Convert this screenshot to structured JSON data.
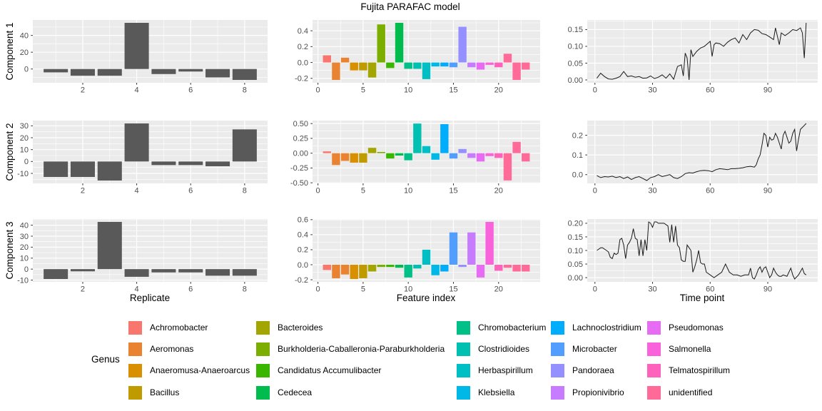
{
  "title": "Fujita PARAFAC model",
  "theme": {
    "panel_bg": "#EBEBEB",
    "grid": "#FFFFFF",
    "bar_fill": "#595959",
    "tick_text": "#4D4D4D",
    "tick_mark": "#333333",
    "line": "#1A1A1A"
  },
  "rows": [
    {
      "label": "Component 1"
    },
    {
      "label": "Component 2"
    },
    {
      "label": "Component 3"
    }
  ],
  "axis_titles": {
    "left": "Replicate",
    "middle": "Feature index",
    "right": "Time point"
  },
  "palette": {
    "feature_colors": [
      "#F8766D",
      "#EA8331",
      "#EA8331",
      "#D89000",
      "#C09B00",
      "#A3A500",
      "#7CAE00",
      "#39B600",
      "#00BB4E",
      "#00C087",
      "#00C0B2",
      "#00BFC4",
      "#00B8E7",
      "#00ACFC",
      "#529EFF",
      "#9590FF",
      "#C77CFF",
      "#E76BF3",
      "#FA62DB",
      "#FF62BC",
      "#FF6A98",
      "#FF6A98",
      "#FF6A98"
    ]
  },
  "legend": {
    "title": "Genus",
    "columns": [
      [
        {
          "label": "Achromobacter",
          "color": "#F8766D"
        },
        {
          "label": "Aeromonas",
          "color": "#EA8331"
        },
        {
          "label": "Anaeromusa-Anaeroarcus",
          "color": "#D89000"
        },
        {
          "label": "Bacillus",
          "color": "#C09B00"
        }
      ],
      [
        {
          "label": "Bacteroides",
          "color": "#A3A500"
        },
        {
          "label": "Burkholderia-Caballeronia-Paraburkholderia",
          "color": "#7CAE00"
        },
        {
          "label": "Candidatus Accumulibacter",
          "color": "#39B600"
        },
        {
          "label": "Cedecea",
          "color": "#00BB4E"
        }
      ],
      [
        {
          "label": "Chromobacterium",
          "color": "#00C087"
        },
        {
          "label": "Clostridioides",
          "color": "#00C0B2"
        },
        {
          "label": "Herbaspirillum",
          "color": "#00BFC4"
        },
        {
          "label": "Klebsiella",
          "color": "#00B8E7"
        }
      ],
      [
        {
          "label": "Lachnoclostridium",
          "color": "#00ACFC"
        },
        {
          "label": "Microbacter",
          "color": "#529EFF"
        },
        {
          "label": "Pandoraea",
          "color": "#9590FF"
        },
        {
          "label": "Propionivibrio",
          "color": "#C77CFF"
        }
      ],
      [
        {
          "label": "Pseudomonas",
          "color": "#E76BF3"
        },
        {
          "label": "Salmonella",
          "color": "#FA62DB"
        },
        {
          "label": "Telmatospirillum",
          "color": "#FF62BC"
        },
        {
          "label": "unidentified",
          "color": "#FF6A98"
        }
      ]
    ]
  },
  "chart_data": [
    {
      "type": "bar",
      "name": "component1-replicate-loadings",
      "fill": "single",
      "x": [
        1,
        2,
        3,
        4,
        5,
        6,
        7,
        8
      ],
      "values": [
        -4,
        -8,
        -8,
        55,
        -6,
        -3,
        -10,
        -13
      ],
      "xlim": [
        0.15,
        8.85
      ],
      "ylim": [
        -16.4,
        58.4
      ],
      "xticks": [
        2,
        4,
        6,
        8
      ],
      "xtick_labels": [
        "2",
        "4",
        "6",
        "8"
      ],
      "yticks": [
        0,
        20,
        40
      ],
      "ytick_labels": [
        "0",
        "20",
        "40"
      ]
    },
    {
      "type": "bar",
      "name": "component1-feature-loadings",
      "fill": "genus",
      "x": [
        1,
        2,
        3,
        4,
        5,
        6,
        7,
        8,
        9,
        10,
        11,
        12,
        13,
        14,
        15,
        16,
        17,
        18,
        19,
        20,
        21,
        22,
        23
      ],
      "values": [
        0.09,
        -0.22,
        0.06,
        -0.1,
        -0.1,
        -0.19,
        0.48,
        -0.07,
        0.5,
        -0.08,
        -0.08,
        -0.21,
        -0.05,
        -0.05,
        -0.06,
        0.45,
        -0.06,
        -0.09,
        -0.03,
        -0.06,
        0.11,
        -0.22,
        -0.09
      ],
      "xlim": [
        -0.6,
        24.6
      ],
      "ylim": [
        -0.256,
        0.536
      ],
      "xticks": [
        0,
        5,
        10,
        15,
        20
      ],
      "xtick_labels": [
        "0",
        "5",
        "10",
        "15",
        "20"
      ],
      "yticks": [
        -0.2,
        0.0,
        0.2,
        0.4
      ],
      "ytick_labels": [
        "-0.2",
        "0.0",
        "0.2",
        "0.4"
      ]
    },
    {
      "type": "line",
      "name": "component1-time-loadings",
      "x": [
        1,
        3,
        5,
        7,
        9,
        11,
        13,
        15,
        17,
        19,
        21,
        23,
        25,
        27,
        29,
        31,
        33,
        35,
        37,
        39,
        41,
        43,
        45,
        46,
        47,
        48,
        49,
        50,
        51,
        53,
        55,
        57,
        59,
        60,
        61,
        62,
        63,
        65,
        67,
        69,
        71,
        73,
        75,
        77,
        79,
        81,
        83,
        85,
        87,
        89,
        91,
        93,
        94,
        95,
        96,
        97,
        99,
        101,
        103,
        105,
        107,
        108,
        109,
        110
      ],
      "y": [
        0.005,
        0.02,
        0.01,
        0.003,
        0.002,
        0.005,
        0.01,
        0.025,
        0.01,
        0.012,
        0.008,
        0.01,
        0.005,
        0.006,
        0.012,
        0.004,
        0.008,
        0.015,
        0.005,
        0.018,
        0.002,
        0.04,
        0.045,
        0.012,
        0.08,
        0.065,
        0.0,
        0.09,
        0.07,
        0.085,
        0.095,
        0.1,
        0.11,
        0.115,
        0.07,
        0.105,
        0.11,
        0.108,
        0.1,
        0.112,
        0.12,
        0.125,
        0.11,
        0.135,
        0.12,
        0.14,
        0.15,
        0.148,
        0.138,
        0.135,
        0.128,
        0.12,
        0.155,
        0.13,
        0.105,
        0.14,
        0.132,
        0.14,
        0.15,
        0.147,
        0.155,
        0.14,
        0.065,
        0.17
      ],
      "xlim": [
        -4,
        116
      ],
      "ylim": [
        -0.0085,
        0.1785
      ],
      "xticks": [
        0,
        30,
        60,
        90
      ],
      "xtick_labels": [
        "0",
        "30",
        "60",
        "90"
      ],
      "yticks": [
        0.0,
        0.05,
        0.1,
        0.15
      ],
      "ytick_labels": [
        "0.00",
        "0.05",
        "0.10",
        "0.15"
      ]
    },
    {
      "type": "bar",
      "name": "component2-replicate-loadings",
      "fill": "single",
      "x": [
        1,
        2,
        3,
        4,
        5,
        6,
        7,
        8
      ],
      "values": [
        -13,
        -13,
        -16,
        32,
        -3,
        -3,
        -4,
        27
      ],
      "xlim": [
        0.15,
        8.85
      ],
      "ylim": [
        -18.4,
        34.4
      ],
      "xticks": [
        2,
        4,
        6,
        8
      ],
      "xtick_labels": [
        "2",
        "4",
        "6",
        "8"
      ],
      "yticks": [
        -10,
        0,
        10,
        20,
        30
      ],
      "ytick_labels": [
        "-10",
        "0",
        "10",
        "20",
        "30"
      ]
    },
    {
      "type": "bar",
      "name": "component2-feature-loadings",
      "fill": "genus",
      "x": [
        1,
        2,
        3,
        4,
        5,
        6,
        7,
        8,
        9,
        10,
        11,
        12,
        13,
        14,
        15,
        16,
        17,
        18,
        19,
        20,
        21,
        22,
        23
      ],
      "values": [
        0.03,
        -0.2,
        -0.13,
        -0.16,
        -0.16,
        0.09,
        0.02,
        -0.09,
        -0.04,
        -0.12,
        0.5,
        0.12,
        -0.11,
        0.49,
        -0.09,
        0.07,
        -0.08,
        -0.14,
        -0.05,
        -0.08,
        -0.46,
        0.19,
        -0.14
      ],
      "xlim": [
        -0.6,
        24.6
      ],
      "ylim": [
        -0.51,
        0.55
      ],
      "xticks": [
        0,
        5,
        10,
        15,
        20
      ],
      "xtick_labels": [
        "0",
        "5",
        "10",
        "15",
        "20"
      ],
      "yticks": [
        -0.5,
        -0.25,
        0.0,
        0.25,
        0.5
      ],
      "ytick_labels": [
        "-0.50",
        "-0.25",
        "0.00",
        "0.25",
        "0.50"
      ]
    },
    {
      "type": "line",
      "name": "component2-time-loadings",
      "x": [
        1,
        3,
        5,
        7,
        9,
        11,
        13,
        15,
        17,
        19,
        21,
        23,
        25,
        27,
        29,
        31,
        33,
        35,
        37,
        39,
        41,
        43,
        45,
        47,
        49,
        51,
        53,
        55,
        57,
        59,
        61,
        63,
        65,
        67,
        69,
        71,
        73,
        75,
        77,
        79,
        81,
        83,
        84,
        85,
        86,
        87,
        88,
        89,
        90,
        91,
        92,
        93,
        94,
        95,
        96,
        97,
        98,
        99,
        100,
        101,
        102,
        103,
        104,
        105,
        106,
        107,
        108,
        109,
        110
      ],
      "y": [
        -0.005,
        -0.015,
        -0.01,
        -0.012,
        -0.008,
        -0.015,
        -0.01,
        -0.02,
        -0.012,
        -0.025,
        -0.015,
        -0.01,
        -0.02,
        -0.03,
        -0.015,
        -0.01,
        0.0,
        -0.01,
        -0.005,
        0.0,
        -0.015,
        -0.02,
        -0.01,
        0.005,
        0.01,
        0.008,
        0.015,
        0.02,
        0.022,
        0.02,
        0.015,
        0.025,
        0.03,
        0.028,
        0.025,
        0.03,
        0.03,
        0.032,
        0.035,
        0.04,
        0.042,
        0.038,
        0.05,
        0.08,
        0.1,
        0.15,
        0.21,
        0.2,
        0.14,
        0.19,
        0.175,
        0.18,
        0.21,
        0.19,
        0.16,
        0.13,
        0.2,
        0.22,
        0.19,
        0.16,
        0.17,
        0.21,
        0.23,
        0.12,
        0.18,
        0.23,
        0.24,
        0.25,
        0.26
      ],
      "xlim": [
        -4,
        116
      ],
      "ylim": [
        -0.0445,
        0.2745
      ],
      "xticks": [
        0,
        30,
        60,
        90
      ],
      "xtick_labels": [
        "0",
        "30",
        "60",
        "90"
      ],
      "yticks": [
        0.0,
        0.1,
        0.2
      ],
      "ytick_labels": [
        "0.0",
        "0.1",
        "0.2"
      ]
    },
    {
      "type": "bar",
      "name": "component3-replicate-loadings",
      "fill": "single",
      "x": [
        1,
        2,
        3,
        4,
        5,
        6,
        7,
        8
      ],
      "values": [
        -9,
        -2,
        43,
        -7,
        -3,
        -3,
        -6,
        -6
      ],
      "xlim": [
        0.15,
        8.85
      ],
      "ylim": [
        -11.6,
        45.6
      ],
      "xticks": [
        2,
        4,
        6,
        8
      ],
      "xtick_labels": [
        "2",
        "4",
        "6",
        "8"
      ],
      "yticks": [
        -10,
        0,
        10,
        20,
        30,
        40
      ],
      "ytick_labels": [
        "-10",
        "0",
        "10",
        "20",
        "30",
        "40"
      ]
    },
    {
      "type": "bar",
      "name": "component3-feature-loadings",
      "fill": "genus",
      "x": [
        1,
        2,
        3,
        4,
        5,
        6,
        7,
        8,
        9,
        10,
        11,
        12,
        13,
        14,
        15,
        16,
        17,
        18,
        19,
        20,
        21,
        22,
        23
      ],
      "values": [
        -0.07,
        -0.18,
        -0.13,
        -0.19,
        -0.18,
        -0.09,
        -0.03,
        -0.03,
        -0.04,
        -0.17,
        -0.05,
        0.2,
        -0.14,
        -0.09,
        0.43,
        -0.03,
        0.43,
        -0.17,
        0.57,
        -0.08,
        -0.04,
        -0.09,
        -0.09
      ],
      "xlim": [
        -0.6,
        24.6
      ],
      "ylim": [
        -0.228,
        0.608
      ],
      "xticks": [
        0,
        5,
        10,
        15,
        20
      ],
      "xtick_labels": [
        "0",
        "5",
        "10",
        "15",
        "20"
      ],
      "yticks": [
        -0.2,
        0.0,
        0.2,
        0.4,
        0.6
      ],
      "ytick_labels": [
        "-0.2",
        "0.0",
        "0.2",
        "0.4",
        "0.6"
      ]
    },
    {
      "type": "line",
      "name": "component3-time-loadings",
      "x": [
        1,
        2,
        3,
        4,
        5,
        6,
        7,
        8,
        9,
        10,
        11,
        12,
        13,
        14,
        15,
        16,
        17,
        18,
        19,
        20,
        21,
        22,
        23,
        24,
        25,
        26,
        27,
        28,
        29,
        30,
        31,
        32,
        33,
        34,
        35,
        36,
        37,
        38,
        39,
        40,
        41,
        42,
        43,
        44,
        45,
        46,
        47,
        48,
        49,
        50,
        51,
        52,
        53,
        54,
        55,
        56,
        57,
        58,
        59,
        60,
        62,
        64,
        66,
        68,
        70,
        72,
        74,
        76,
        78,
        80,
        81,
        82,
        83,
        84,
        85,
        86,
        87,
        88,
        89,
        90,
        91,
        92,
        93,
        94,
        95,
        96,
        97,
        98,
        100,
        102,
        103,
        104,
        106,
        108,
        109,
        110
      ],
      "y": [
        0.1,
        0.105,
        0.11,
        0.11,
        0.105,
        0.1,
        0.095,
        0.075,
        0.07,
        0.09,
        0.085,
        0.09,
        0.14,
        0.145,
        0.12,
        0.07,
        0.12,
        0.13,
        0.145,
        0.18,
        0.145,
        0.14,
        0.08,
        0.14,
        0.08,
        0.14,
        0.1,
        0.205,
        0.2,
        0.185,
        0.205,
        0.205,
        0.2,
        0.2,
        0.2,
        0.2,
        0.195,
        0.19,
        0.13,
        0.195,
        0.13,
        0.19,
        0.12,
        0.11,
        0.065,
        0.06,
        0.06,
        0.12,
        0.11,
        0.1,
        0.02,
        0.04,
        0.065,
        0.1,
        0.055,
        0.05,
        0.05,
        0.02,
        0.015,
        0.01,
        0.0,
        0.01,
        0.02,
        0.05,
        0.02,
        0.01,
        0.01,
        0.005,
        0.01,
        0.01,
        0.035,
        0.0,
        -0.005,
        0.01,
        0.03,
        0.04,
        0.02,
        0.035,
        0.04,
        0.02,
        0.0,
        0.01,
        0.035,
        0.02,
        0.01,
        0.005,
        0.005,
        0.01,
        0.005,
        0.035,
        0.01,
        -0.005,
        0.01,
        0.035,
        0.015,
        0.01
      ],
      "xlim": [
        -4,
        116
      ],
      "ylim": [
        -0.0155,
        0.2155
      ],
      "xticks": [
        0,
        30,
        60,
        90
      ],
      "xtick_labels": [
        "0",
        "30",
        "60",
        "90"
      ],
      "yticks": [
        0.0,
        0.05,
        0.1,
        0.15,
        0.2
      ],
      "ytick_labels": [
        "0.00",
        "0.05",
        "0.10",
        "0.15",
        "0.20"
      ]
    }
  ]
}
